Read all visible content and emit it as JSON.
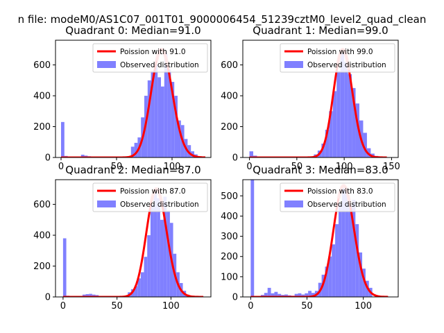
{
  "suptitle": "n file: modeM0/AS1C07_001T01_9000006454_51239cztM0_level2_quad_clean",
  "colors": {
    "poisson": "#ff0000",
    "poisson_mode_core": "#ff8080",
    "observed": "#8080ff",
    "axes": "#000000"
  },
  "chart_data": [
    {
      "type": "bar",
      "title": "Quadrant 0: Median=91.0",
      "xlabel": "",
      "ylabel": "",
      "xlim": [
        -5,
        135
      ],
      "ylim": [
        0,
        760
      ],
      "xticks": [
        0,
        50,
        100
      ],
      "xtick_labels": [
        "0",
        "50",
        "100"
      ],
      "yticks": [
        0,
        200,
        400,
        600
      ],
      "ytick_labels": [
        "0",
        "200",
        "400",
        "600"
      ],
      "legend": {
        "placement": "top-right",
        "entries": [
          "Poission with 91.0",
          "Observed distribution"
        ]
      },
      "bins": {
        "x": [
          0,
          3,
          18,
          21,
          24,
          27,
          30,
          50,
          55,
          63,
          66,
          69,
          72,
          75,
          78,
          81,
          84,
          87,
          90,
          93,
          96,
          99,
          102,
          105,
          108,
          111,
          114,
          117,
          120,
          123,
          126
        ],
        "values": [
          230,
          10,
          18,
          12,
          8,
          6,
          5,
          3,
          4,
          70,
          95,
          130,
          260,
          400,
          500,
          560,
          600,
          520,
          460,
          680,
          570,
          490,
          400,
          240,
          210,
          120,
          80,
          40,
          20,
          8,
          4
        ],
        "width": 3
      },
      "poisson": {
        "mean": 91.0,
        "x_range": [
          0,
          130
        ],
        "peak": 700
      }
    },
    {
      "type": "bar",
      "title": "Quadrant 1: Median=99.0",
      "xlabel": "",
      "ylabel": "",
      "xlim": [
        -7,
        157
      ],
      "ylim": [
        0,
        760
      ],
      "xticks": [
        0,
        50,
        100,
        150
      ],
      "xtick_labels": [
        "0",
        "50",
        "100",
        "150"
      ],
      "yticks": [
        0,
        200,
        400,
        600
      ],
      "ytick_labels": [
        "0",
        "200",
        "400",
        "600"
      ],
      "legend": {
        "placement": "top-right",
        "entries": [
          "Poission with 99.0",
          "Observed distribution"
        ]
      },
      "bins": {
        "x": [
          0,
          4,
          8,
          68,
          72,
          76,
          80,
          84,
          88,
          92,
          96,
          100,
          104,
          108,
          112,
          116,
          120,
          124,
          128,
          132
        ],
        "values": [
          40,
          12,
          4,
          20,
          45,
          90,
          180,
          300,
          430,
          560,
          680,
          620,
          540,
          450,
          350,
          240,
          160,
          60,
          25,
          10
        ],
        "width": 4
      },
      "poisson": {
        "mean": 99.0,
        "x_range": [
          0,
          145
        ],
        "peak": 700
      }
    },
    {
      "type": "bar",
      "title": "Quadrant 2: Median=87.0",
      "xlabel": "",
      "ylabel": "",
      "xlim": [
        -7,
        137
      ],
      "ylim": [
        0,
        760
      ],
      "xticks": [
        0,
        50,
        100
      ],
      "xtick_labels": [
        "0",
        "50",
        "100"
      ],
      "yticks": [
        0,
        200,
        400,
        600
      ],
      "ytick_labels": [
        "0",
        "200",
        "400",
        "600"
      ],
      "legend": {
        "placement": "top-right",
        "entries": [
          "Poission with 87.0",
          "Observed distribution"
        ]
      },
      "bins": {
        "x": [
          0,
          3,
          18,
          21,
          24,
          27,
          30,
          33,
          60,
          63,
          66,
          69,
          72,
          75,
          78,
          81,
          84,
          87,
          90,
          93,
          96,
          99,
          102,
          105,
          108,
          111,
          114,
          117
        ],
        "values": [
          380,
          8,
          15,
          18,
          20,
          15,
          12,
          6,
          30,
          50,
          70,
          120,
          160,
          260,
          400,
          600,
          700,
          640,
          500,
          650,
          560,
          480,
          280,
          160,
          90,
          40,
          15,
          6
        ],
        "width": 3
      },
      "poisson": {
        "mean": 87.0,
        "x_range": [
          0,
          130
        ],
        "peak": 700
      }
    },
    {
      "type": "bar",
      "title": "Quadrant 3: Median=83.0",
      "xlabel": "",
      "ylabel": "",
      "xlim": [
        -7,
        131
      ],
      "ylim": [
        0,
        580
      ],
      "xticks": [
        0,
        50,
        100
      ],
      "xtick_labels": [
        "0",
        "50",
        "100"
      ],
      "yticks": [
        0,
        100,
        200,
        300,
        400,
        500
      ],
      "ytick_labels": [
        "0",
        "100",
        "200",
        "300",
        "400",
        "500"
      ],
      "legend": {
        "placement": "top-right",
        "entries": [
          "Poission with 83.0",
          "Observed distribution"
        ]
      },
      "bins": {
        "x": [
          0,
          9,
          12,
          15,
          18,
          21,
          24,
          27,
          30,
          33,
          36,
          39,
          42,
          45,
          48,
          51,
          54,
          57,
          60,
          63,
          66,
          69,
          72,
          75,
          78,
          81,
          84,
          87,
          90,
          93,
          96,
          99,
          102,
          105
        ],
        "values": [
          580,
          10,
          20,
          45,
          18,
          25,
          15,
          10,
          12,
          8,
          6,
          15,
          18,
          12,
          18,
          30,
          20,
          30,
          70,
          110,
          150,
          200,
          260,
          360,
          460,
          540,
          520,
          450,
          480,
          360,
          220,
          140,
          80,
          45
        ],
        "width": 3
      },
      "poisson": {
        "mean": 83.0,
        "x_range": [
          0,
          122
        ],
        "peak": 550
      }
    }
  ]
}
